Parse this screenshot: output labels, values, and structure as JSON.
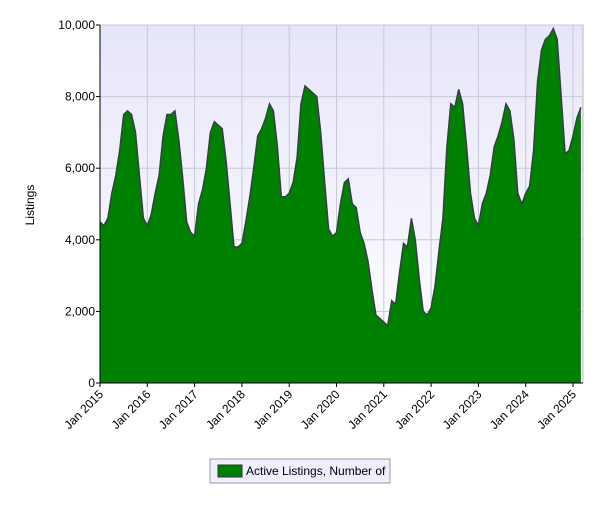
{
  "chart_data": {
    "type": "area",
    "y_label": "Listings",
    "categories": [
      "Jan 2015",
      null,
      null,
      null,
      null,
      null,
      null,
      null,
      null,
      null,
      null,
      null,
      "Jan 2016",
      null,
      null,
      null,
      null,
      null,
      null,
      null,
      null,
      null,
      null,
      null,
      "Jan 2017",
      null,
      null,
      null,
      null,
      null,
      null,
      null,
      null,
      null,
      null,
      null,
      "Jan 2018",
      null,
      null,
      null,
      null,
      null,
      null,
      null,
      null,
      null,
      null,
      null,
      "Jan 2019",
      null,
      null,
      null,
      null,
      null,
      null,
      null,
      null,
      null,
      null,
      null,
      "Jan 2020",
      null,
      null,
      null,
      null,
      null,
      null,
      null,
      null,
      null,
      null,
      null,
      "Jan 2021",
      null,
      null,
      null,
      null,
      null,
      null,
      null,
      null,
      null,
      null,
      null,
      "Jan 2022",
      null,
      null,
      null,
      null,
      null,
      null,
      null,
      null,
      null,
      null,
      null,
      "Jan 2023",
      null,
      null,
      null,
      null,
      null,
      null,
      null,
      null,
      null,
      null,
      null,
      "Jan 2024",
      null,
      null,
      null,
      null,
      null,
      null,
      null,
      null,
      null,
      null,
      null,
      "Jan 2025",
      null,
      null
    ],
    "series": [
      {
        "name": "Active Listings, Number of",
        "color": "#008000",
        "values": [
          4500,
          4400,
          4600,
          5300,
          5800,
          6500,
          7500,
          7600,
          7500,
          7000,
          5800,
          4600,
          4400,
          4700,
          5300,
          5800,
          6900,
          7500,
          7500,
          7600,
          6800,
          5700,
          4500,
          4200,
          4100,
          5000,
          5400,
          6000,
          7000,
          7300,
          7200,
          7100,
          6200,
          5000,
          3800,
          3800,
          3900,
          4500,
          5200,
          6000,
          6900,
          7100,
          7400,
          7800,
          7600,
          6600,
          5200,
          5200,
          5300,
          5600,
          6300,
          7800,
          8300,
          8200,
          8100,
          8000,
          7000,
          5600,
          4300,
          4100,
          4200,
          5000,
          5600,
          5700,
          5000,
          4900,
          4200,
          3900,
          3400,
          2600,
          1900,
          1800,
          1700,
          1600,
          2300,
          2200,
          3100,
          3900,
          3800,
          4600,
          4000,
          2900,
          2000,
          1900,
          2100,
          2700,
          3700,
          4600,
          6600,
          7800,
          7700,
          8200,
          7800,
          6600,
          5300,
          4600,
          4400,
          5000,
          5300,
          5800,
          6600,
          6900,
          7300,
          7800,
          7600,
          6800,
          5300,
          5000,
          5300,
          5500,
          6500,
          8400,
          9300,
          9600,
          9700,
          9900,
          9600,
          8000,
          6400,
          6500,
          6900,
          7400,
          7700
        ]
      }
    ],
    "ylim": [
      0,
      10000
    ],
    "yticks": [
      0,
      {
        "value": 2000,
        "label": "2,000"
      },
      {
        "value": 4000,
        "label": "4,000"
      },
      {
        "value": 6000,
        "label": "6,000"
      },
      {
        "value": 8000,
        "label": "8,000"
      },
      {
        "value": 10000,
        "label": "10,000"
      }
    ],
    "grid": true,
    "legend": "bottom"
  }
}
